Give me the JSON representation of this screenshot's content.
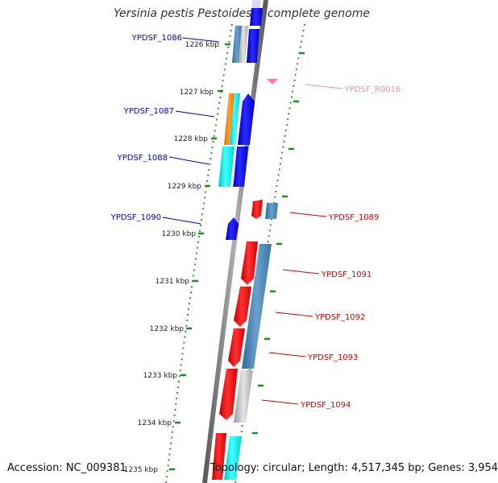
{
  "title": "Yersinia pestis Pestoides F, complete genome",
  "footer": {
    "accession": "Accession: NC_009381",
    "info": "Topology: circular; Length: 4,517,345 bp; Genes: 3,954"
  },
  "colors": {
    "backbone": "#7a7a7a",
    "ticks": "#1e8c1e",
    "dots": "#2a9a2a",
    "label_left": "#0000c0",
    "label_right": "#d00000",
    "label_rna": "#ff88bb",
    "gene_red": "#ff0000",
    "gene_blue": "#0000ee",
    "gene_cyan": "#00eaea",
    "gene_orange": "#ff8800",
    "gene_steel": "#4682b4",
    "gene_grey": "#b8b8b8",
    "rna_pink": "#ff77aa"
  },
  "ticks": [
    {
      "label": "1226 kbp"
    },
    {
      "label": "1227 kbp"
    },
    {
      "label": "1228 kbp"
    },
    {
      "label": "1229 kbp"
    },
    {
      "label": "1230 kbp"
    },
    {
      "label": "1231 kbp"
    },
    {
      "label": "1232 kbp"
    },
    {
      "label": "1233 kbp"
    },
    {
      "label": "1234 kbp"
    },
    {
      "label": "1235 kbp"
    }
  ],
  "genes_left": [
    "YPDSF_1086",
    "YPDSF_1087",
    "YPDSF_1088",
    "YPDSF_1090"
  ],
  "genes_right": [
    "YPDSF_1089",
    "YPDSF_1091",
    "YPDSF_1092",
    "YPDSF_1093",
    "YPDSF_1094"
  ],
  "rna_labels": [
    "YPDSF_R0016"
  ]
}
